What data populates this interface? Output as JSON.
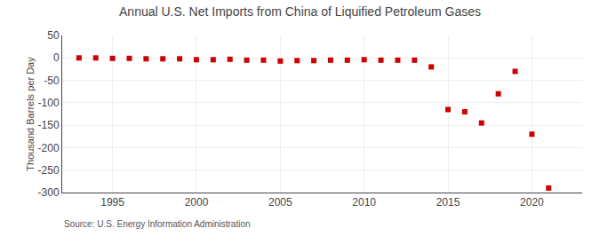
{
  "chart_data": {
    "type": "scatter",
    "title": "Annual U.S. Net Imports from China of Liquified Petroleum Gases",
    "ylabel": "Thousand Barrels per Day",
    "annotations": [
      "Source: U.S. Energy Information Administration"
    ],
    "x": [
      1993,
      1994,
      1995,
      1996,
      1997,
      1998,
      1999,
      2000,
      2001,
      2002,
      2003,
      2004,
      2005,
      2006,
      2007,
      2008,
      2009,
      2010,
      2011,
      2012,
      2013,
      2014,
      2015,
      2016,
      2017,
      2018,
      2019,
      2020,
      2021
    ],
    "values": [
      0,
      0,
      -1,
      -1,
      -2,
      -2,
      -2,
      -4,
      -4,
      -3,
      -5,
      -5,
      -7,
      -6,
      -6,
      -5,
      -5,
      -4,
      -5,
      -5,
      -5,
      -20,
      -115,
      -120,
      -145,
      -80,
      -30,
      -170,
      -290
    ],
    "color": "#cc0000",
    "marker": "square",
    "xlim": [
      1992,
      2023
    ],
    "xticks": [
      1995,
      2000,
      2005,
      2010,
      2015,
      2020
    ],
    "ylim": [
      -300,
      50
    ],
    "yticks": [
      50,
      0,
      -50,
      -100,
      -150,
      -200,
      -250,
      -300
    ],
    "grid": true
  }
}
